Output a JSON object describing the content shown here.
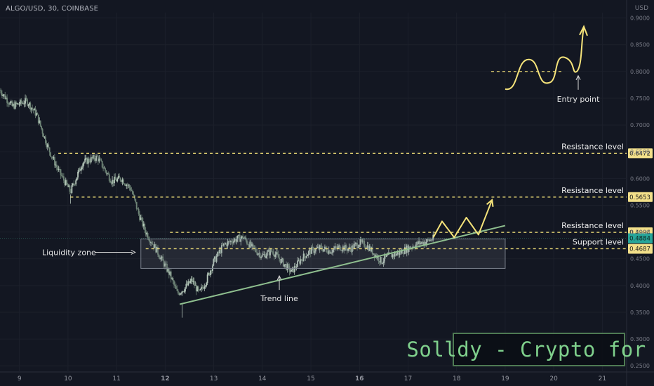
{
  "header": {
    "symbol": "ALGO/USD, 30, COINBASE",
    "currency": "USD"
  },
  "brand": {
    "text": "Solldy - Crypto for U"
  },
  "colors": {
    "background": "#131722",
    "candle": "#9fb9a8",
    "level_line": "#f5e37a",
    "trend_line": "#8fbf8f",
    "zone": "#6b7280",
    "price_tag": "#26a69a"
  },
  "chart_data": {
    "type": "candlestick",
    "title": "",
    "x_ticks": [
      "9",
      "10",
      "11",
      "12",
      "13",
      "14",
      "15",
      "16",
      "17",
      "18",
      "19",
      "20",
      "21"
    ],
    "y_ticks": [
      "0.9000",
      "0.8500",
      "0.8000",
      "0.7500",
      "0.7000",
      "0.6500",
      "0.6000",
      "0.5500",
      "0.5000",
      "0.4500",
      "0.4000",
      "0.3500",
      "0.3000",
      "0.2500"
    ],
    "y_range": [
      0.245,
      0.91
    ],
    "x_range_days": [
      8.6,
      21.5
    ],
    "price_path": [
      [
        8.6,
        0.765
      ],
      [
        8.85,
        0.735
      ],
      [
        9.15,
        0.745
      ],
      [
        9.35,
        0.72
      ],
      [
        9.6,
        0.655
      ],
      [
        9.8,
        0.615
      ],
      [
        10.05,
        0.575
      ],
      [
        10.3,
        0.63
      ],
      [
        10.6,
        0.64
      ],
      [
        10.9,
        0.595
      ],
      [
        11.1,
        0.6
      ],
      [
        11.3,
        0.58
      ],
      [
        11.45,
        0.535
      ],
      [
        11.6,
        0.5
      ],
      [
        11.8,
        0.47
      ],
      [
        11.95,
        0.445
      ],
      [
        12.1,
        0.42
      ],
      [
        12.25,
        0.385
      ],
      [
        12.4,
        0.395
      ],
      [
        12.55,
        0.41
      ],
      [
        12.7,
        0.385
      ],
      [
        12.85,
        0.41
      ],
      [
        13.0,
        0.445
      ],
      [
        13.2,
        0.475
      ],
      [
        13.4,
        0.485
      ],
      [
        13.6,
        0.49
      ],
      [
        13.8,
        0.47
      ],
      [
        14.0,
        0.455
      ],
      [
        14.2,
        0.465
      ],
      [
        14.4,
        0.445
      ],
      [
        14.6,
        0.425
      ],
      [
        14.8,
        0.45
      ],
      [
        15.0,
        0.465
      ],
      [
        15.2,
        0.47
      ],
      [
        15.4,
        0.465
      ],
      [
        15.6,
        0.472
      ],
      [
        15.8,
        0.468
      ],
      [
        16.0,
        0.48
      ],
      [
        16.15,
        0.475
      ],
      [
        16.3,
        0.46
      ],
      [
        16.45,
        0.445
      ],
      [
        16.6,
        0.455
      ],
      [
        16.8,
        0.46
      ],
      [
        17.0,
        0.47
      ],
      [
        17.2,
        0.478
      ],
      [
        17.4,
        0.483
      ],
      [
        17.52,
        0.488
      ]
    ],
    "levels": [
      {
        "label": "Resistance level",
        "price": 0.6472,
        "tag": "0.6472",
        "start_day": 9.8
      },
      {
        "label": "Resistance level",
        "price": 0.5653,
        "tag": "0.5653",
        "start_day": 10.05
      },
      {
        "label": "Resistance level",
        "price": 0.4994,
        "tag": "0.4994",
        "start_day": 12.1
      },
      {
        "label": "Support level",
        "price": 0.4687,
        "tag": "0.4687",
        "start_day": 11.6
      }
    ],
    "last_price": {
      "price": 0.4884,
      "tag": "0.4884"
    },
    "liquidity_zone": {
      "label": "Liquidity zone",
      "day_from": 11.5,
      "day_to": 19.0,
      "price_low": 0.432,
      "price_high": 0.487
    },
    "trend_line": {
      "label": "Trend line",
      "from": [
        12.3,
        0.365
      ],
      "to": [
        19.0,
        0.512
      ]
    },
    "projection_path": [
      [
        17.52,
        0.49
      ],
      [
        17.7,
        0.52
      ],
      [
        17.95,
        0.49
      ],
      [
        18.2,
        0.527
      ],
      [
        18.45,
        0.495
      ],
      [
        18.73,
        0.56
      ]
    ],
    "entry_illustration": {
      "label": "Entry point",
      "base_price": 0.8,
      "from_day": 19.0,
      "to_day": 21.0
    }
  }
}
